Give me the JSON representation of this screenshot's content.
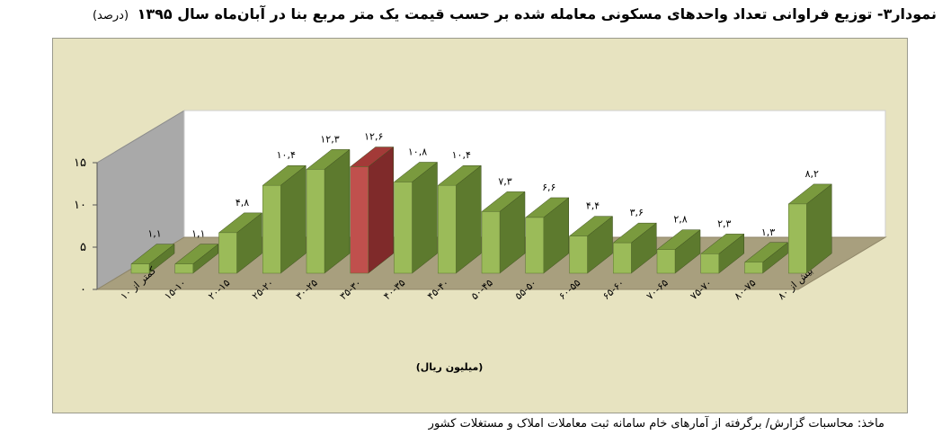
{
  "header": {
    "title": "نمودار۳- توزیع فراوانی تعداد واحدهای مسکونی معامله شده بر حسب قیمت یک متر مربع بنا در آبان‌ماه سال ۱۳۹۵",
    "unit": "(درصد)"
  },
  "footer": {
    "source": "ماخذ: محاسبات گزارش/ برگرفته از آمارهای خام سامانه ثبت معاملات املاک و مستغلات کشور"
  },
  "colors": {
    "bar_front": "#9bbb59",
    "bar_side": "#5d7a2e",
    "bar_top": "#7a9a3e",
    "highlight_front": "#c0504d",
    "highlight_side": "#7f2a2a",
    "highlight_top": "#a33a38",
    "frame_bg": "#e7e3c0",
    "wall_back": "#ffffff",
    "wall_side": "#a9a9a9",
    "floor": "#a89f7e"
  },
  "chart_data": {
    "type": "bar",
    "title": "",
    "xlabel": "(میلیون ریال)",
    "ylabel": "",
    "ylim": [
      0,
      15
    ],
    "ytick_labels": [
      "۰",
      "۵",
      "۱۰",
      "۱۵"
    ],
    "ytick_values": [
      0,
      5,
      10,
      15
    ],
    "categories": [
      "کمتر از ۱۰",
      "۱۵-۱۰",
      "۲۰-۱۵",
      "۲۵-۲۰",
      "۳۰-۲۵",
      "۳۵-۳۰",
      "۴۰-۳۵",
      "۴۵-۴۰",
      "۵۰-۴۵",
      "۵۵-۵۰",
      "۶۰-۵۵",
      "۶۵-۶۰",
      "۷۰-۶۵",
      "۷۵-۷۰",
      "۸۰-۷۵",
      "بیش از ۸۰"
    ],
    "values": [
      1.1,
      1.1,
      4.8,
      10.4,
      12.3,
      12.6,
      10.8,
      10.4,
      7.3,
      6.6,
      4.4,
      3.6,
      2.8,
      2.3,
      1.3,
      8.2
    ],
    "data_labels": [
      "۱,۱",
      "۱,۱",
      "۴,۸",
      "۱۰,۴",
      "۱۲,۳",
      "۱۲,۶",
      "۱۰,۸",
      "۱۰,۴",
      "۷,۳",
      "۶,۶",
      "۴,۴",
      "۳,۶",
      "۲,۸",
      "۲,۳",
      "۱,۳",
      "۸,۲"
    ],
    "highlight_index": 5,
    "grid": false,
    "legend": "none"
  }
}
